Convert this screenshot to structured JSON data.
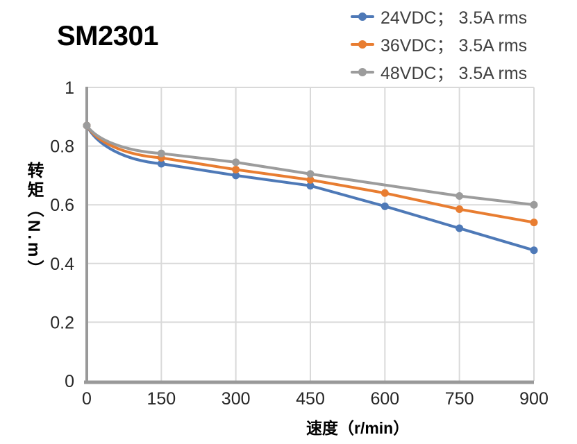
{
  "title": "SM2301",
  "legend": {
    "items": [
      {
        "label": "24VDC； 3.5A rms",
        "color": "#4E79B7"
      },
      {
        "label": "36VDC； 3.5A rms",
        "color": "#E87D31"
      },
      {
        "label": "48VDC； 3.5A rms",
        "color": "#9C9C9C"
      }
    ]
  },
  "colors": {
    "axis": "#999999",
    "gridline": "#D9D9D9",
    "tick_text": "#262626",
    "legend_text": "#404040",
    "title_text": "#000000"
  },
  "chart_data": {
    "type": "line",
    "title": "SM2301",
    "xlabel": "速度（r/min）",
    "ylabel": "转矩（N.m）",
    "x": [
      0,
      150,
      300,
      450,
      600,
      750,
      900
    ],
    "series": [
      {
        "id": "24vdc",
        "name": "24VDC； 3.5A rms",
        "color": "#4E79B7",
        "values": [
          0.87,
          0.74,
          0.7,
          0.665,
          0.595,
          0.52,
          0.445
        ]
      },
      {
        "id": "36vdc",
        "name": "36VDC； 3.5A rms",
        "color": "#E87D31",
        "values": [
          0.87,
          0.76,
          0.72,
          0.685,
          0.64,
          0.585,
          0.54
        ]
      },
      {
        "id": "48vdc",
        "name": "48VDC； 3.5A rms",
        "color": "#9C9C9C",
        "values": [
          0.87,
          0.775,
          0.745,
          0.705,
          null,
          0.63,
          0.6
        ]
      }
    ],
    "xlim": [
      0,
      900
    ],
    "ylim": [
      0,
      1
    ],
    "xticks": [
      0,
      150,
      300,
      450,
      600,
      750,
      900
    ],
    "xtick_labels": [
      "0",
      "150",
      "300",
      "450",
      "600",
      "750",
      "900"
    ],
    "yticks": [
      0,
      0.2,
      0.4,
      0.6,
      0.8,
      1
    ],
    "ytick_labels": [
      "0",
      "0.2",
      "0.4",
      "0.6",
      "0.8",
      "1"
    ],
    "grid": true,
    "legend_position": "top-right",
    "markers": true
  }
}
